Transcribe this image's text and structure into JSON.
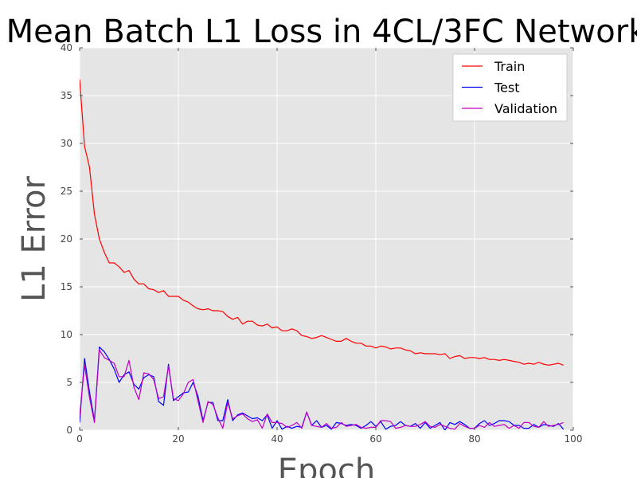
{
  "chart_data": {
    "type": "line",
    "title": "Mean Batch L1 Loss in 4CL/3FC Network",
    "xlabel": "Epoch",
    "ylabel": "L1 Error",
    "xlim": [
      0,
      100
    ],
    "ylim": [
      0,
      40
    ],
    "xticks": [
      "0",
      "20",
      "40",
      "60",
      "80",
      "100"
    ],
    "yticks": [
      "0",
      "5",
      "10",
      "15",
      "20",
      "25",
      "30",
      "35",
      "40"
    ],
    "grid": true,
    "legend_position": "top-right",
    "series": [
      {
        "name": "Train",
        "color": "#ff0000",
        "values": [
          36.7,
          29.7,
          27.5,
          22.6,
          20.0,
          18.6,
          17.5,
          17.5,
          17.1,
          16.5,
          16.7,
          15.8,
          15.3,
          15.3,
          14.8,
          14.7,
          14.4,
          14.6,
          14.0,
          14.0,
          14.0,
          13.6,
          13.4,
          13.0,
          12.7,
          12.6,
          12.7,
          12.5,
          12.5,
          12.4,
          11.9,
          11.6,
          11.8,
          11.1,
          11.4,
          11.4,
          11.0,
          10.9,
          11.1,
          10.7,
          10.8,
          10.4,
          10.4,
          10.6,
          10.4,
          9.9,
          9.8,
          9.6,
          9.7,
          9.9,
          9.7,
          9.5,
          9.3,
          9.3,
          9.6,
          9.3,
          9.1,
          9.1,
          8.8,
          8.8,
          8.6,
          8.8,
          8.7,
          8.5,
          8.6,
          8.6,
          8.4,
          8.3,
          8.0,
          8.1,
          8.0,
          8.0,
          8.0,
          7.9,
          8.0,
          7.5,
          7.7,
          7.8,
          7.5,
          7.6,
          7.6,
          7.5,
          7.6,
          7.4,
          7.4,
          7.3,
          7.4,
          7.3,
          7.2,
          7.1,
          6.9,
          7.0,
          6.9,
          7.1,
          6.9,
          6.8,
          6.9,
          7.0,
          6.8
        ],
        "marker": "none"
      },
      {
        "name": "Test",
        "color": "#0000ff",
        "values": [
          0.8,
          7.5,
          4.0,
          1.0,
          8.7,
          8.2,
          7.4,
          6.4,
          5.0,
          5.8,
          6.1,
          4.8,
          4.3,
          5.5,
          5.8,
          5.6,
          3.0,
          2.6,
          6.9,
          3.1,
          3.5,
          3.9,
          4.0,
          5.0,
          3.5,
          1.0,
          2.9,
          2.9,
          1.0,
          1.0,
          3.2,
          1.0,
          1.6,
          1.8,
          1.5,
          1.2,
          1.3,
          1.0,
          1.6,
          0.2,
          1.0,
          0.1,
          0.4,
          0.2,
          0.4,
          0.3,
          1.9,
          0.5,
          1.0,
          0.3,
          0.5,
          0.1,
          0.8,
          0.7,
          0.5,
          0.6,
          0.5,
          0.2,
          0.5,
          0.9,
          0.4,
          0.9,
          0.1,
          0.4,
          0.5,
          0.9,
          0.5,
          0.4,
          0.7,
          0.2,
          0.8,
          0.2,
          0.5,
          0.8,
          0.0,
          0.8,
          0.6,
          0.9,
          0.6,
          0.2,
          0.2,
          0.7,
          1.0,
          0.5,
          0.7,
          1.0,
          1.0,
          0.9,
          0.5,
          0.5,
          0.2,
          0.2,
          0.6,
          0.3,
          0.6,
          0.5,
          0.4,
          0.7,
          0.1
        ],
        "marker": "none"
      },
      {
        "name": "Validation",
        "color": "#bf00bf",
        "values": [
          1.5,
          6.8,
          3.4,
          0.8,
          8.4,
          7.6,
          7.3,
          7.0,
          5.6,
          5.6,
          7.3,
          4.5,
          3.2,
          6.0,
          5.9,
          5.3,
          3.3,
          3.5,
          6.7,
          3.3,
          3.1,
          3.8,
          5.0,
          5.3,
          3.0,
          0.8,
          3.0,
          2.7,
          1.3,
          0.2,
          2.9,
          1.2,
          1.5,
          1.7,
          1.2,
          0.9,
          1.1,
          0.2,
          1.7,
          0.8,
          0.8,
          0.7,
          0.3,
          0.5,
          0.8,
          0.2,
          1.9,
          0.5,
          0.4,
          0.3,
          0.7,
          0.2,
          0.3,
          0.8,
          0.4,
          0.5,
          0.6,
          0.3,
          0.2,
          0.3,
          0.3,
          1.0,
          1.0,
          0.9,
          0.2,
          0.3,
          0.5,
          0.4,
          0.4,
          0.6,
          0.9,
          0.4,
          0.3,
          0.6,
          0.4,
          0.2,
          0.1,
          0.7,
          0.4,
          0.2,
          0.2,
          0.5,
          0.3,
          0.8,
          0.4,
          0.5,
          0.6,
          0.2,
          0.5,
          0.2,
          0.8,
          0.8,
          0.4,
          0.3,
          0.9,
          0.4,
          0.5,
          0.6,
          0.8
        ],
        "marker": "none"
      }
    ]
  },
  "colors": {
    "plot_background": "#e5e5e5",
    "gridline": "#ffffff",
    "legend_background": "#ffffff"
  }
}
